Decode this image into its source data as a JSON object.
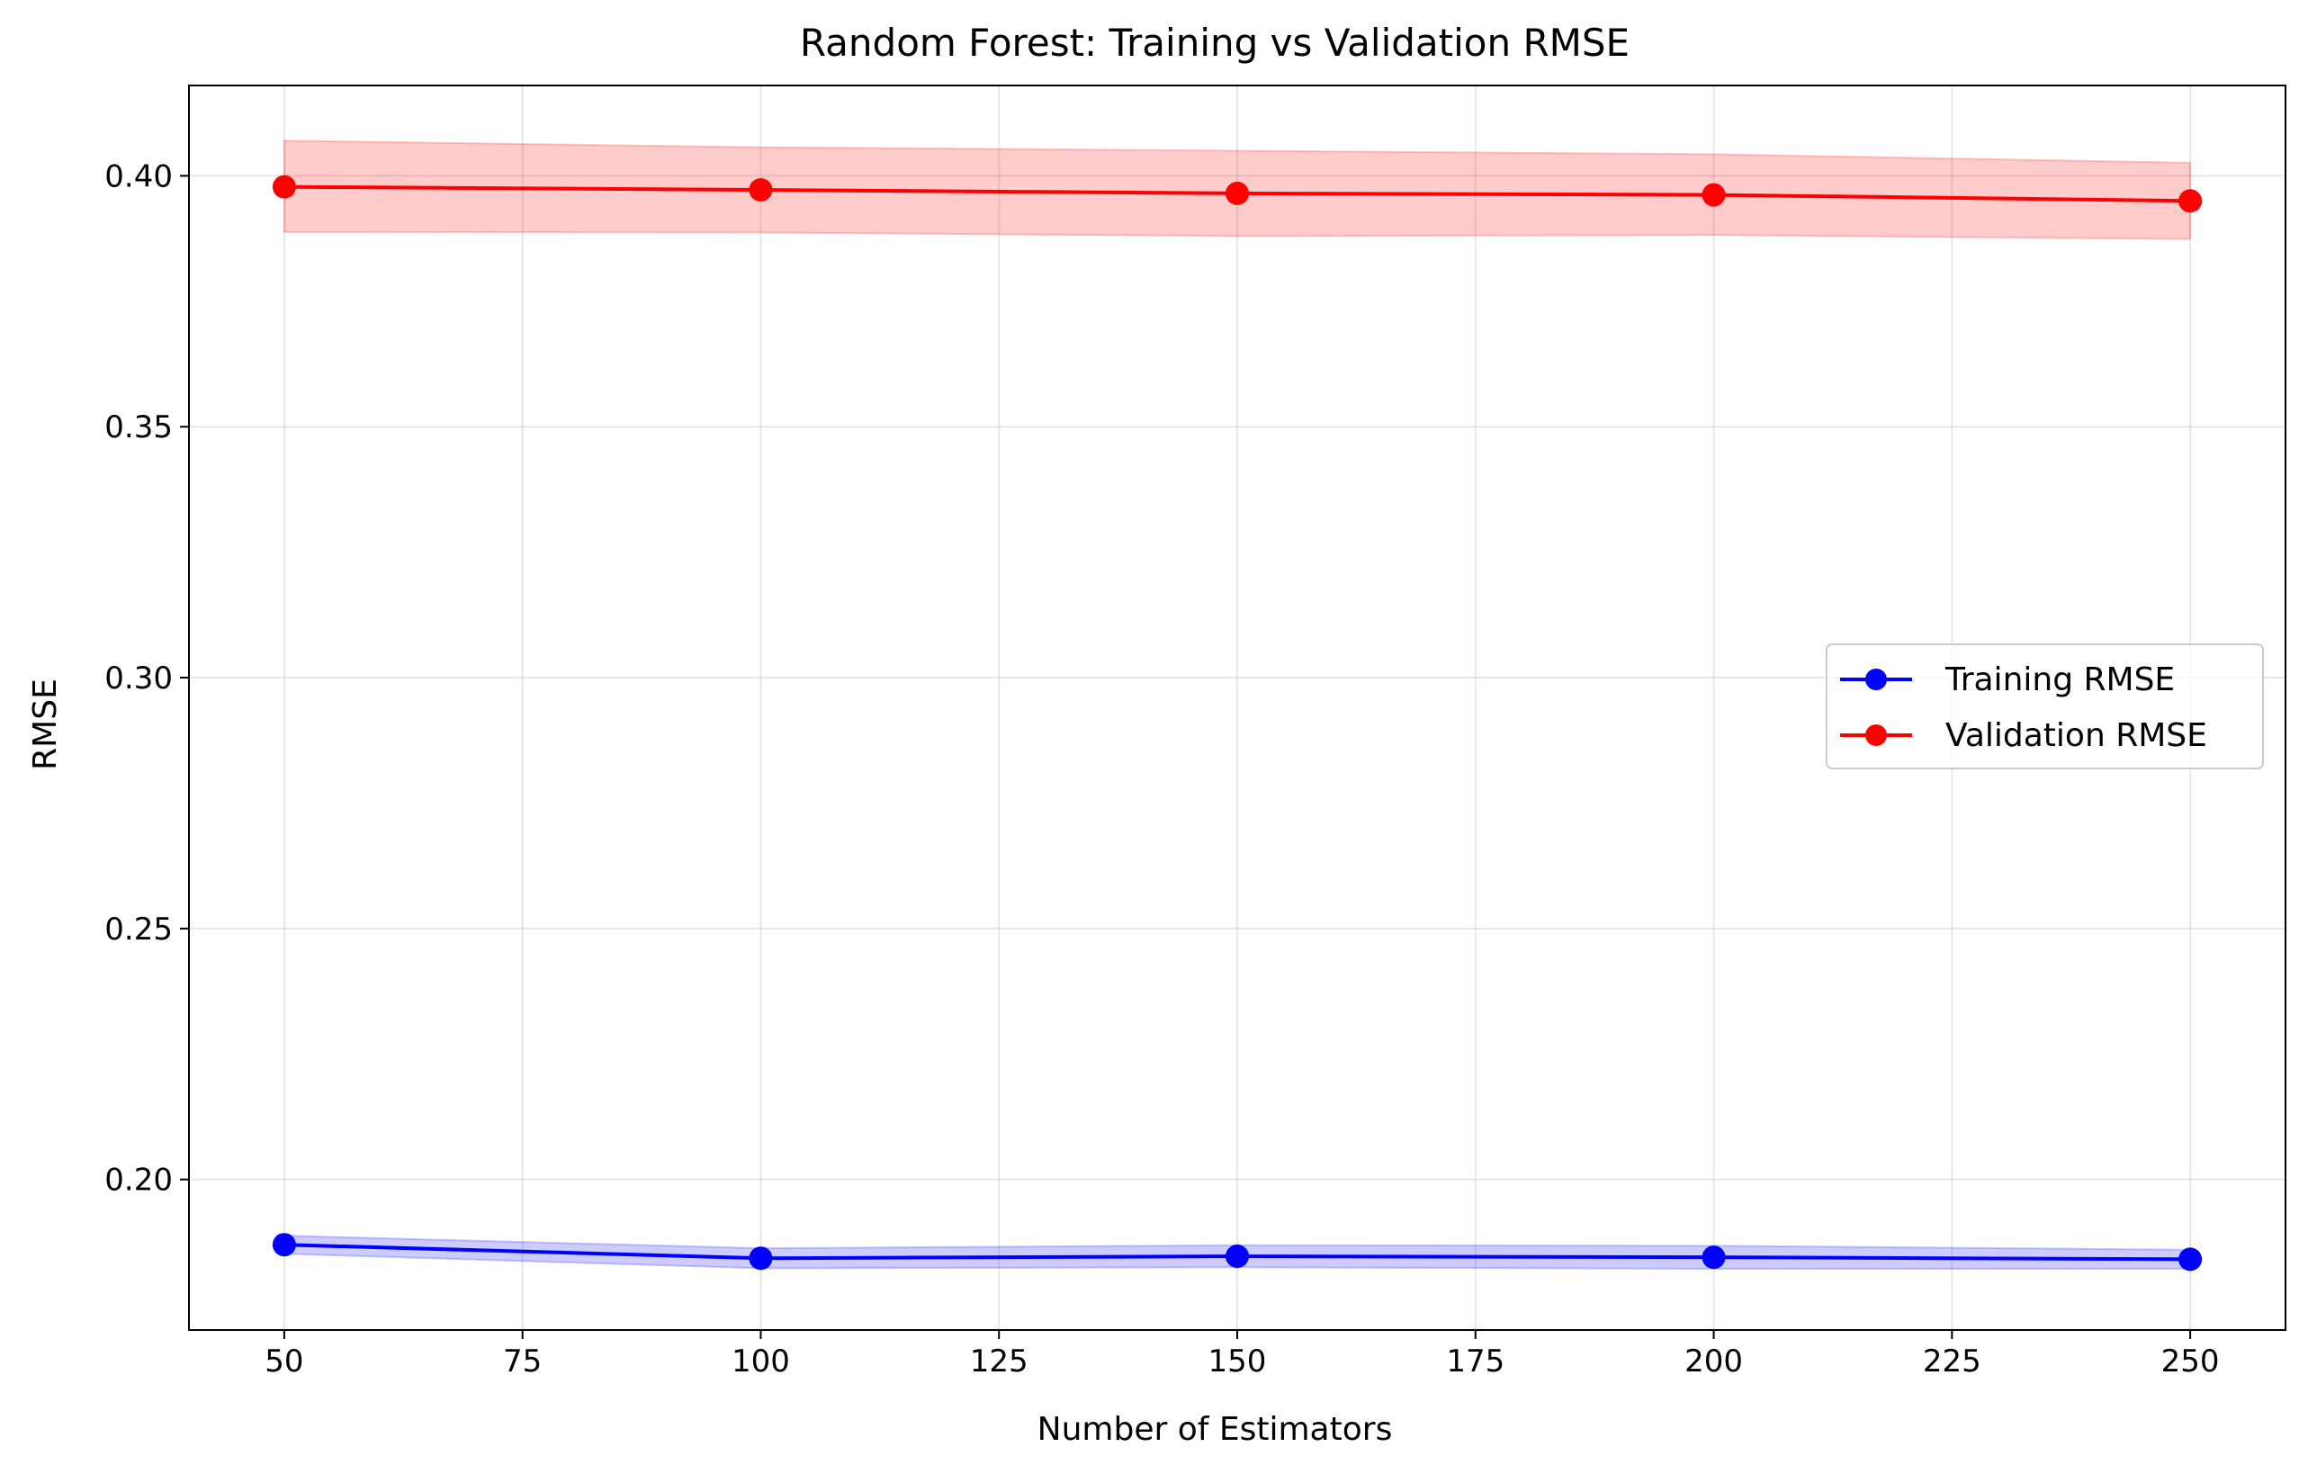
{
  "chart_data": {
    "type": "line",
    "title": "Random Forest: Training vs Validation RMSE",
    "xlabel": "Number of Estimators",
    "ylabel": "RMSE",
    "x": [
      50,
      100,
      150,
      200,
      250
    ],
    "xlim": [
      40,
      260
    ],
    "ylim": [
      0.17,
      0.418
    ],
    "xticks": [
      50,
      75,
      100,
      125,
      150,
      175,
      200,
      225,
      250
    ],
    "yticks": [
      0.2,
      0.25,
      0.3,
      0.35,
      0.4
    ],
    "xtick_labels": [
      "50",
      "75",
      "100",
      "125",
      "150",
      "175",
      "200",
      "225",
      "250"
    ],
    "ytick_labels": [
      "0.20",
      "0.25",
      "0.30",
      "0.35",
      "0.40"
    ],
    "grid": true,
    "legend_position": "center-right",
    "series": [
      {
        "name": "Training RMSE",
        "color": "#0000ff",
        "values": [
          0.187,
          0.1843,
          0.1847,
          0.1845,
          0.1841
        ],
        "band_lower": [
          0.1852,
          0.1823,
          0.1825,
          0.1822,
          0.1822
        ],
        "band_upper": [
          0.1888,
          0.1863,
          0.1869,
          0.1868,
          0.186
        ]
      },
      {
        "name": "Validation RMSE",
        "color": "#ff0000",
        "values": [
          0.3978,
          0.3972,
          0.3965,
          0.3962,
          0.395
        ],
        "band_lower": [
          0.3888,
          0.3887,
          0.388,
          0.3882,
          0.3874
        ],
        "band_upper": [
          0.407,
          0.4057,
          0.405,
          0.4043,
          0.4026
        ]
      }
    ]
  }
}
